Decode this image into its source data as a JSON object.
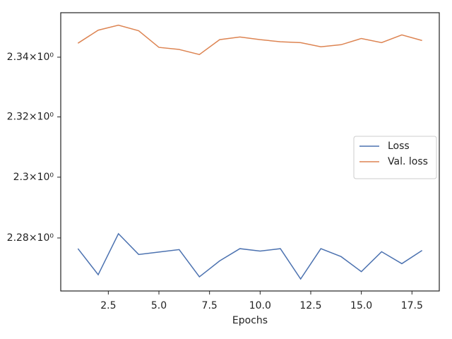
{
  "chart_data": {
    "type": "line",
    "xlabel": "Epochs",
    "x": [
      1,
      2,
      3,
      4,
      5,
      6,
      7,
      8,
      9,
      10,
      11,
      12,
      13,
      14,
      15,
      16,
      17,
      18
    ],
    "series": [
      {
        "name": "Loss",
        "color": "#4c72b0",
        "values": [
          2.2765,
          2.268,
          2.2814,
          2.2746,
          2.2754,
          2.2762,
          2.2673,
          2.2725,
          2.2765,
          2.2757,
          2.2765,
          2.2666,
          2.2765,
          2.2739,
          2.269,
          2.2755,
          2.2716,
          2.2759
        ]
      },
      {
        "name": "Val. loss",
        "color": "#dd8452",
        "values": [
          2.3447,
          2.3491,
          2.3508,
          2.3489,
          2.3433,
          2.3426,
          2.3409,
          2.3459,
          2.3468,
          2.3459,
          2.3452,
          2.3449,
          2.3435,
          2.3442,
          2.3463,
          2.3449,
          2.3475,
          2.3456
        ]
      }
    ],
    "xlim": [
      0.15,
      18.85
    ],
    "ylim": [
      2.2627,
      2.355
    ],
    "ylog": true,
    "xticks": [
      2.5,
      {
        "value": 5,
        "label": "5.0"
      },
      7.5,
      {
        "value": 10,
        "label": "10.0"
      },
      12.5,
      {
        "value": 15,
        "label": "15.0"
      },
      17.5
    ],
    "yticks": [
      {
        "value": 2.28,
        "label": "2.28×10⁰"
      },
      {
        "value": 2.3,
        "label": "2.3×10⁰"
      },
      {
        "value": 2.32,
        "label": "2.32×10⁰"
      },
      {
        "value": 2.34,
        "label": "2.34×10⁰"
      }
    ],
    "grid": false,
    "legend": "right"
  }
}
